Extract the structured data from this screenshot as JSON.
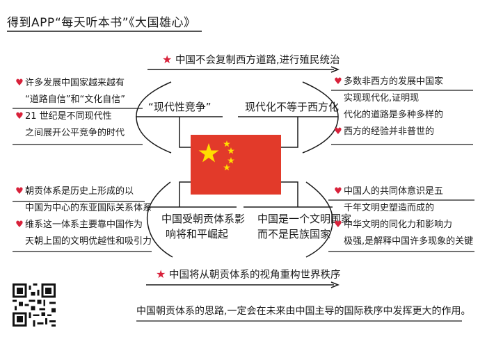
{
  "header": {
    "title": "得到APP“每天听本书”《大国雄心》"
  },
  "banner_top": {
    "text": "中国不会复制西方道路,进行殖民统治"
  },
  "banner_bottom": {
    "text": "中国将从朝贡体系的视角重构世界秩序"
  },
  "topics": {
    "top_left": "“现代性竞争”",
    "top_right": "现代化不等于西方化",
    "bottom_left": [
      "中国受朝贡体系影",
      "响将和平崛起"
    ],
    "bottom_right": [
      "中国是一个文明国家",
      "而不是民族国家"
    ]
  },
  "notes": {
    "top_left": [
      {
        "heart": true,
        "text": "许多发展中国家越来越有"
      },
      {
        "heart": false,
        "text": "“道路自信”和“文化自信”"
      },
      {
        "heart": true,
        "text": "21 世纪是不同现代性"
      },
      {
        "heart": false,
        "text": "之间展开公平竞争的时代"
      }
    ],
    "top_right": [
      {
        "heart": true,
        "text": "多数非西方的发展中国家"
      },
      {
        "heart": false,
        "text": "实现现代化,证明现"
      },
      {
        "heart": false,
        "text": "代化的道路是多种多样的"
      },
      {
        "heart": true,
        "text": "西方的经验并非普世的"
      }
    ],
    "bottom_left": [
      {
        "heart": true,
        "text": "朝贡体系是历史上形成的以"
      },
      {
        "heart": false,
        "text": "中国为中心的东亚国际关系体系"
      },
      {
        "heart": true,
        "text": "维系这一体系主要靠中国作为"
      },
      {
        "heart": false,
        "text": "天朝上国的文明优越性和吸引力"
      }
    ],
    "bottom_right": [
      {
        "heart": true,
        "text": "中国人的共同体意识是五"
      },
      {
        "heart": false,
        "text": "千年文明史塑造而成的"
      },
      {
        "heart": true,
        "text": "中华文明的同化力和影响力"
      },
      {
        "heart": false,
        "text": "极强,是解释中国许多现象的关键"
      }
    ]
  },
  "footer": {
    "text": "中国朝贡体系的思路,一定会在未来由中国主导的国际秩序中发挥更大的作用。"
  },
  "colors": {
    "accent_red": "#d8213a",
    "flag_red": "#e23a2a",
    "flag_yellow": "#ffde00",
    "ink": "#1a1a1a"
  },
  "icons": {
    "note_bullet": "heart-icon",
    "banner_marker": "red-star-icon",
    "image": "china-flag-icon",
    "corner": "qr-code-icon"
  }
}
